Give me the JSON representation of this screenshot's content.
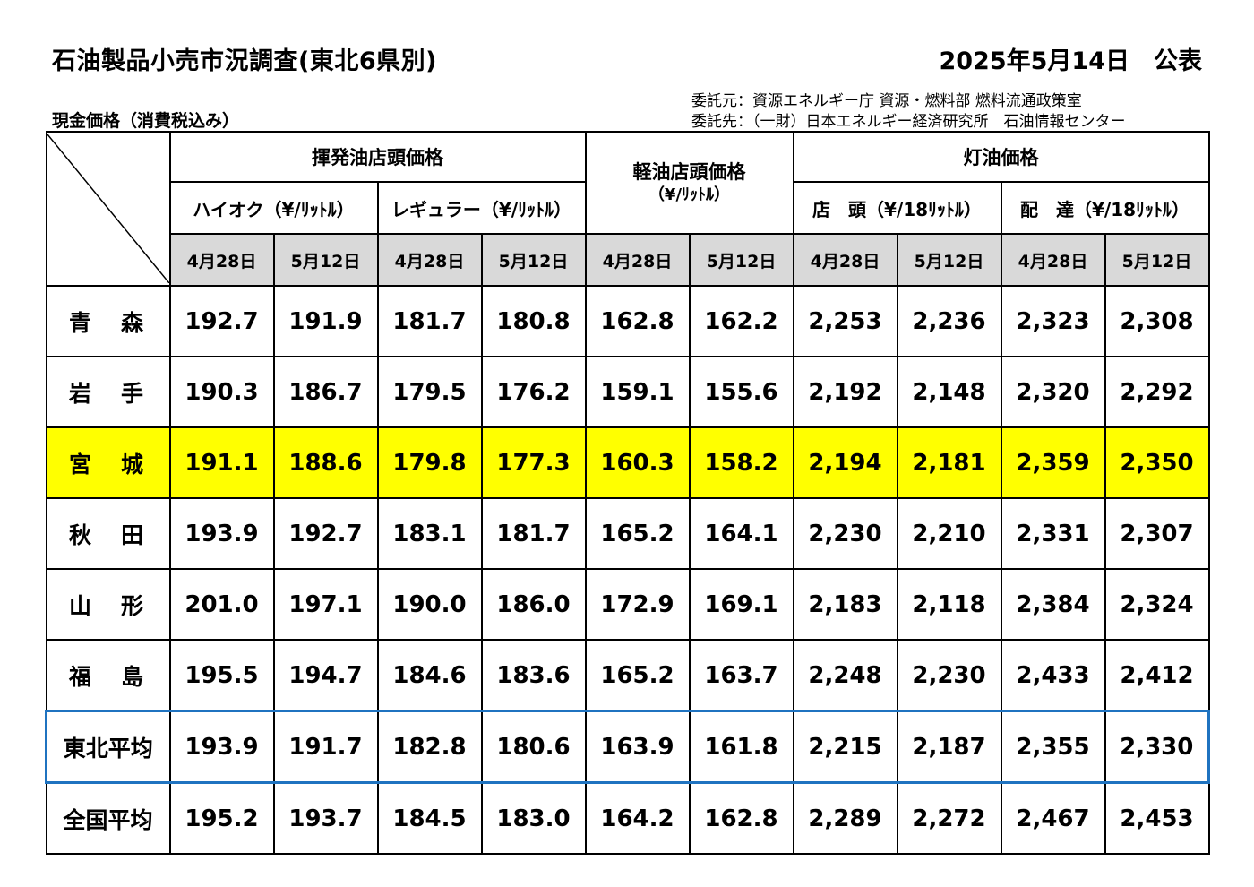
{
  "title": "石油製品小売市況調査(東北6県別)",
  "date": "2025年5月14日　公表",
  "subtitle": "現金価格（消費税込み）",
  "credits": {
    "line1": "委託元：資源エネルギー庁 資源・燃料部 燃料流通政策室",
    "line2": "委託先：（一財）日本エネルギー経済研究所　石油情報センター"
  },
  "headers": {
    "gasoline": "揮発油店頭価格",
    "diesel": "軽油店頭価格",
    "diesel_unit": "（¥/ﾘｯﾄﾙ）",
    "kerosene": "灯油価格",
    "high_octane": "ハイオク（¥/ﾘｯﾄﾙ）",
    "regular": "レギュラー（¥/ﾘｯﾄﾙ）",
    "kerosene_store": "店　頭（¥/18ﾘｯﾄﾙ）",
    "kerosene_delivery": "配　達（¥/18ﾘｯﾄﾙ）",
    "dates": [
      "4月28日",
      "5月12日",
      "4月28日",
      "5月12日",
      "4月28日",
      "5月12日",
      "4月28日",
      "5月12日",
      "4月28日",
      "5月12日"
    ]
  },
  "rows": [
    {
      "name": "青　森",
      "values": [
        "192.7",
        "191.9",
        "181.7",
        "180.8",
        "162.8",
        "162.2",
        "2,253",
        "2,236",
        "2,323",
        "2,308"
      ]
    },
    {
      "name": "岩　手",
      "values": [
        "190.3",
        "186.7",
        "179.5",
        "176.2",
        "159.1",
        "155.6",
        "2,192",
        "2,148",
        "2,320",
        "2,292"
      ]
    },
    {
      "name": "宮　城",
      "values": [
        "191.1",
        "188.6",
        "179.8",
        "177.3",
        "160.3",
        "158.2",
        "2,194",
        "2,181",
        "2,359",
        "2,350"
      ]
    },
    {
      "name": "秋　田",
      "values": [
        "193.9",
        "192.7",
        "183.1",
        "181.7",
        "165.2",
        "164.1",
        "2,230",
        "2,210",
        "2,331",
        "2,307"
      ]
    },
    {
      "name": "山　形",
      "values": [
        "201.0",
        "197.1",
        "190.0",
        "186.0",
        "172.9",
        "169.1",
        "2,183",
        "2,118",
        "2,384",
        "2,324"
      ]
    },
    {
      "name": "福　島",
      "values": [
        "195.5",
        "194.7",
        "184.6",
        "183.6",
        "165.2",
        "163.7",
        "2,248",
        "2,230",
        "2,433",
        "2,412"
      ]
    },
    {
      "name": "東北平均",
      "values": [
        "193.9",
        "191.7",
        "182.8",
        "180.6",
        "163.9",
        "161.8",
        "2,215",
        "2,187",
        "2,355",
        "2,330"
      ]
    },
    {
      "name": "全国平均",
      "values": [
        "195.2",
        "193.7",
        "184.5",
        "183.0",
        "164.2",
        "162.8",
        "2,289",
        "2,272",
        "2,467",
        "2,453"
      ]
    }
  ],
  "highlight_color": "#ffff00",
  "tohoku_border_color": "#1f73c0"
}
